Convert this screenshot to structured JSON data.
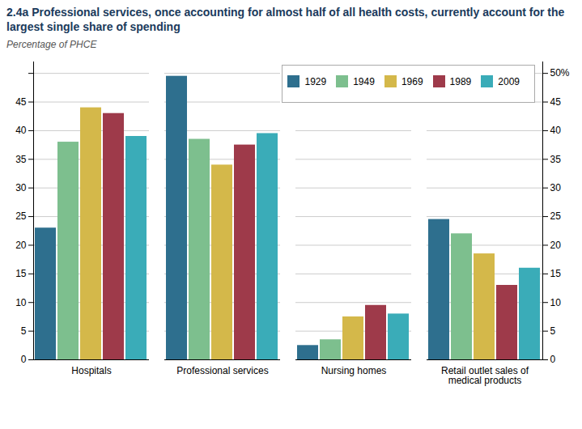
{
  "chart_data": {
    "type": "bar",
    "title": "2.4a Professional services, once accounting for almost half of all health costs, currently account for the largest single share of spending",
    "ylabel": "Percentage of PHCE",
    "categories": [
      "Hospitals",
      "Professional services",
      "Nursing homes",
      "Retail outlet sales of\nmedical products"
    ],
    "series": [
      {
        "name": "1929",
        "color": "#2e6f8e",
        "values": [
          23.0,
          49.5,
          2.5,
          24.5
        ]
      },
      {
        "name": "1949",
        "color": "#7dbf8e",
        "values": [
          38.0,
          38.5,
          3.5,
          22.0
        ]
      },
      {
        "name": "1969",
        "color": "#d4b84a",
        "values": [
          44.0,
          34.0,
          7.5,
          18.5
        ]
      },
      {
        "name": "1989",
        "color": "#9e3a4a",
        "values": [
          43.0,
          37.5,
          9.5,
          13.0
        ]
      },
      {
        "name": "2009",
        "color": "#3aacb8",
        "values": [
          39.0,
          39.5,
          8.0,
          16.0
        ]
      }
    ],
    "ylim": [
      0,
      52
    ],
    "yticks": [
      0,
      5,
      10,
      15,
      20,
      25,
      30,
      35,
      40,
      45,
      {
        "value": 50,
        "label": null
      }
    ],
    "y2lim": [
      0,
      52
    ],
    "y2ticks": [
      0,
      5,
      10,
      15,
      20,
      25,
      30,
      35,
      40,
      45,
      {
        "value": 50,
        "label": "50%"
      }
    ],
    "grid": true,
    "legend": "upper right"
  }
}
